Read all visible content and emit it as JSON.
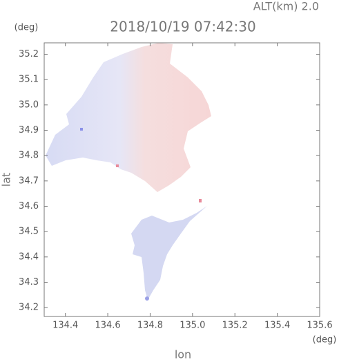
{
  "chart_data": {
    "type": "map",
    "title": "2018/10/19 07:42:30",
    "subtitle": "ALT(km) 2.0",
    "x_label": "lon",
    "y_label": "lat",
    "x_unit": "(deg)",
    "y_unit": "(deg)",
    "xlim": [
      134.3,
      135.6
    ],
    "ylim": [
      34.165,
      35.245
    ],
    "xticks": [
      134.4,
      134.6,
      134.8,
      {
        "value": 135,
        "label": "135.0"
      },
      135.2,
      135.4,
      135.6
    ],
    "yticks": [
      34.2,
      34.3,
      34.4,
      34.5,
      34.6,
      34.7,
      34.8,
      34.9,
      {
        "value": 35,
        "label": "35.0"
      },
      35.1,
      35.2
    ],
    "grid": false
  }
}
